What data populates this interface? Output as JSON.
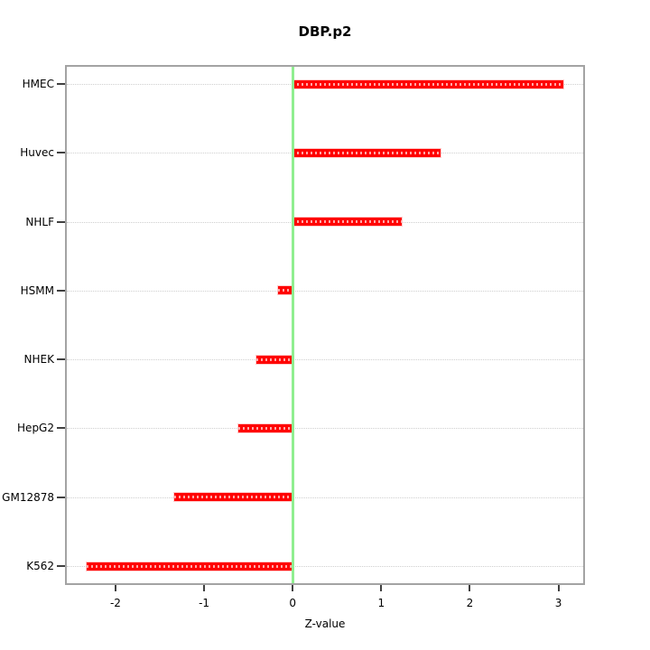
{
  "chart_data": {
    "type": "bar",
    "orientation": "horizontal",
    "title": "DBP.p2",
    "xlabel": "Z-value",
    "ylabel": "",
    "categories": [
      "HMEC",
      "Huvec",
      "NHLF",
      "HSMM",
      "NHEK",
      "HepG2",
      "GM12878",
      "K562"
    ],
    "values": [
      3.06,
      1.67,
      1.23,
      -0.17,
      -0.41,
      -0.61,
      -1.34,
      -2.33
    ],
    "xlim": [
      -2.55,
      3.28
    ],
    "xticks": [
      -2,
      -1,
      0,
      1,
      2,
      3
    ],
    "xtick_labels": [
      "-2",
      "-1",
      "0",
      "1",
      "2",
      "3"
    ],
    "grid": "horizontal dotted line per category",
    "zero_line_x": 0,
    "legend": "none",
    "colors": {
      "bar": "#ff0000",
      "bar_dash_overlay": "rgba(255,255,255,0.65)",
      "zero_line": "#90ee90",
      "grid_line": "#cfcfcf",
      "box": "#a3a3a3",
      "tick": "#404040",
      "text": "#000000",
      "background": "#ffffff"
    }
  }
}
